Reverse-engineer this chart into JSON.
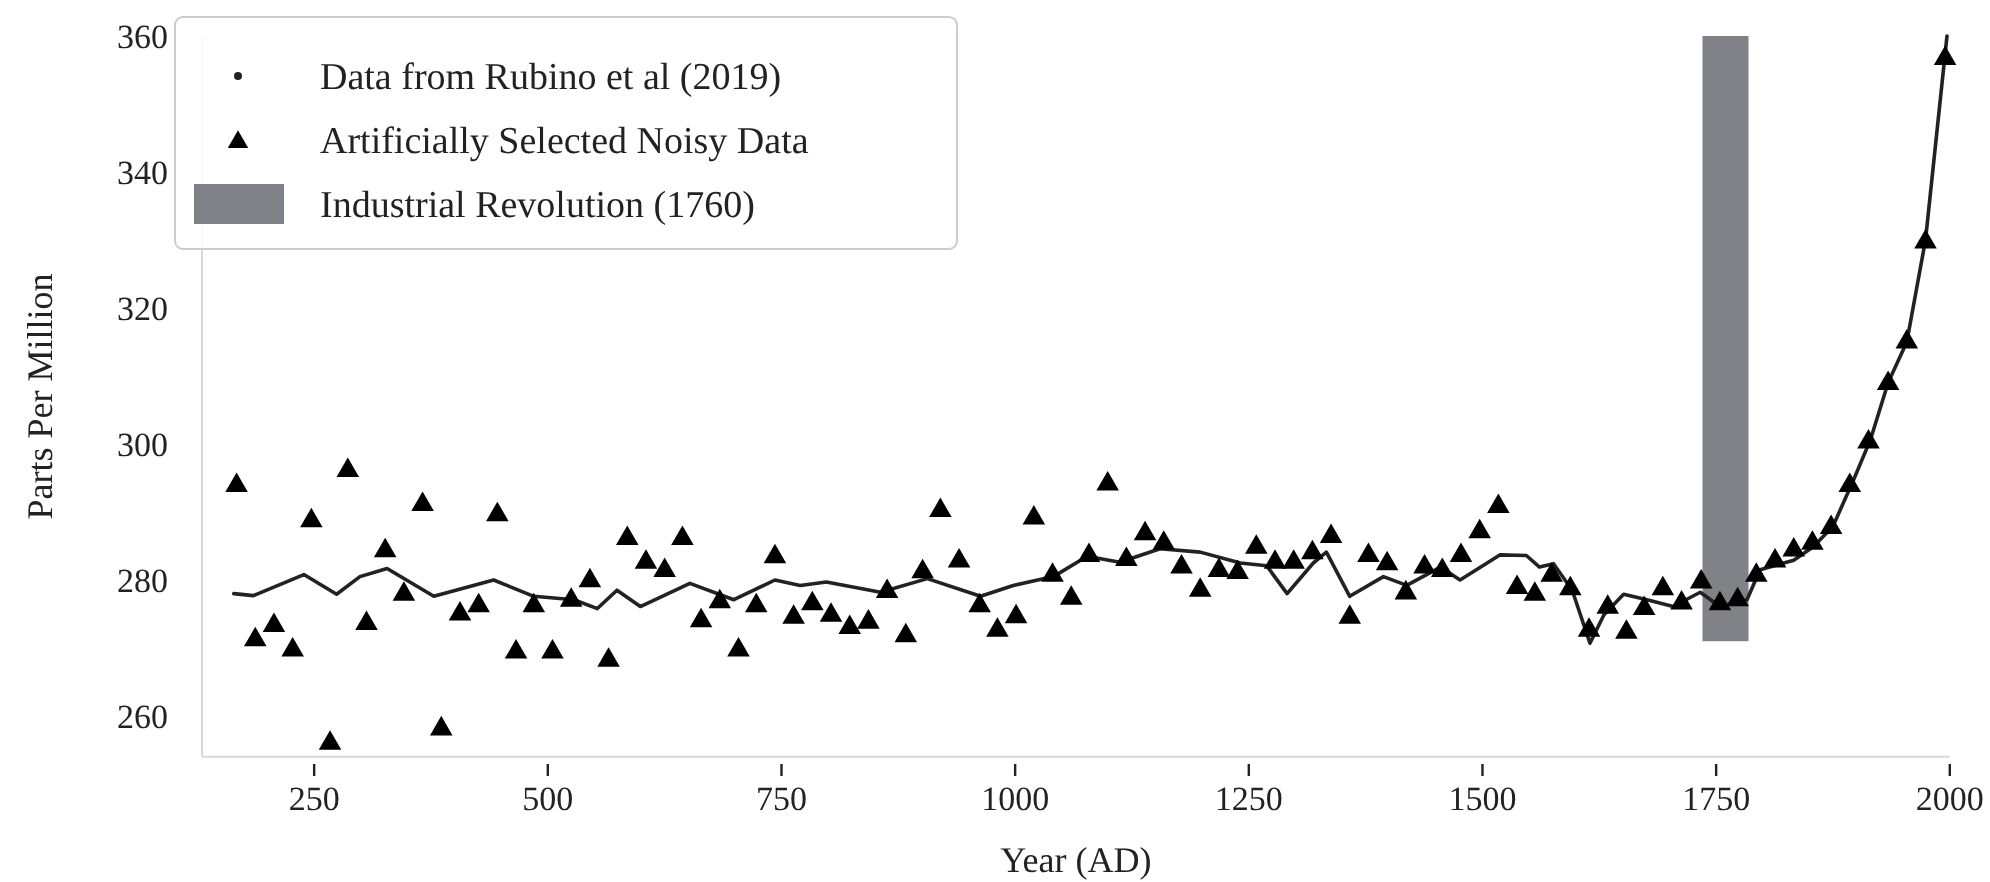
{
  "chart_data": {
    "type": "line",
    "xlabel": "Year (AD)",
    "ylabel": "Parts Per Million",
    "xlim": [
      130,
      2000
    ],
    "ylim": [
      254,
      360
    ],
    "xticks": [
      250,
      500,
      750,
      1000,
      1250,
      1500,
      1750,
      2000
    ],
    "yticks": [
      260,
      280,
      300,
      320,
      340,
      360
    ],
    "grid": false,
    "legend": "top left",
    "series": [
      {
        "name": "Data from Rubino et al (2019)",
        "color": "#222222",
        "marker": "none",
        "x": [
          164,
          185,
          239,
          274,
          299,
          328,
          378,
          442,
          485,
          528,
          553,
          574,
          599,
          652,
          699,
          743,
          770,
          798,
          856,
          906,
          963,
          998,
          1041,
          1077,
          1112,
          1155,
          1198,
          1241,
          1269,
          1291,
          1319,
          1333,
          1358,
          1394,
          1419,
          1455,
          1476,
          1519,
          1547,
          1561,
          1576,
          1596,
          1615,
          1630,
          1651,
          1676,
          1704,
          1733,
          1754,
          1783,
          1797,
          1833,
          1854,
          1875,
          1897,
          1915,
          1934,
          1954,
          1974,
          1997
        ],
        "values": [
          278,
          277.7,
          280.8,
          277.9,
          280.5,
          281.7,
          277.6,
          280,
          277.6,
          277.1,
          275.8,
          278.5,
          276.1,
          279.5,
          277.1,
          280,
          279.2,
          279.7,
          278.2,
          280.2,
          277.6,
          279.2,
          280.5,
          283.5,
          282.6,
          284.6,
          284.1,
          282.5,
          282.1,
          278,
          282.5,
          284.1,
          277.6,
          280.5,
          279.2,
          281.9,
          280,
          283.7,
          283.6,
          281.9,
          282.4,
          278.5,
          270.7,
          274.9,
          277.9,
          277.1,
          276.1,
          278.2,
          276.1,
          277.1,
          281.5,
          282.9,
          284.9,
          287.9,
          294.7,
          300.6,
          309,
          315,
          330,
          360
        ]
      },
      {
        "name": "Artificially Selected Noisy Data",
        "type": "scatter",
        "color": "#000000",
        "marker": "triangle",
        "x": [
          167,
          187,
          207,
          227,
          247,
          267,
          286,
          306,
          326,
          346,
          366,
          386,
          406,
          426,
          446,
          466,
          485,
          505,
          525,
          545,
          565,
          585,
          605,
          625,
          644,
          664,
          684,
          704,
          723,
          743,
          763,
          783,
          803,
          823,
          843,
          863,
          883,
          901,
          920,
          940,
          962,
          981,
          1001,
          1020,
          1040,
          1060,
          1079,
          1099,
          1119,
          1139,
          1159,
          1178,
          1198,
          1218,
          1238,
          1258,
          1278,
          1298,
          1318,
          1338,
          1358,
          1378,
          1398,
          1418,
          1438,
          1457,
          1477,
          1497,
          1517,
          1537,
          1556,
          1574,
          1594,
          1614,
          1634,
          1654,
          1673,
          1693,
          1713,
          1734,
          1754,
          1773,
          1793,
          1813,
          1833,
          1853,
          1873,
          1893,
          1913,
          1934,
          1954,
          1974,
          1995
        ],
        "values": [
          294.2,
          271.5,
          273.6,
          270,
          289,
          256.3,
          296.4,
          273.9,
          284.6,
          278.2,
          291.4,
          258.4,
          275.3,
          276.5,
          289.9,
          269.7,
          276.5,
          269.7,
          277.3,
          280.2,
          268.5,
          286.4,
          282.9,
          281.7,
          286.4,
          274.3,
          277.1,
          270,
          276.5,
          283.7,
          274.8,
          276.8,
          275.1,
          273.3,
          274.1,
          278.6,
          272.1,
          281.5,
          290.5,
          283.1,
          276.5,
          272.9,
          274.9,
          289.4,
          281,
          277.6,
          283.9,
          294.4,
          283.3,
          287.1,
          285.7,
          282.2,
          278.8,
          281.7,
          281.4,
          285.1,
          282.9,
          282.9,
          284.3,
          286.7,
          274.8,
          283.9,
          282.7,
          278.4,
          282.2,
          281.7,
          283.9,
          287.4,
          291.1,
          279.2,
          278.2,
          281,
          279,
          272.9,
          276.3,
          272.6,
          276.1,
          279,
          276.9,
          280,
          276.8,
          277.4,
          281,
          283.1,
          284.7,
          285.7,
          288,
          294.2,
          300.6,
          309.2,
          315.3,
          330,
          357
        ]
      },
      {
        "name": "Industrial Revolution (1760)",
        "type": "bar",
        "color": "#808287",
        "x": [
          1760
        ],
        "base": [
          271
        ],
        "values": [
          89
        ]
      }
    ]
  }
}
